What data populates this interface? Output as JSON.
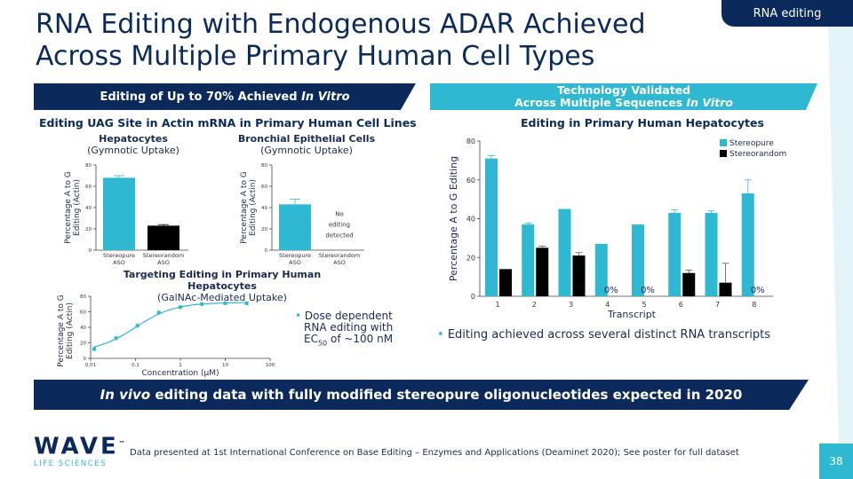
{
  "tag": "RNA editing",
  "title_line1": "RNA Editing with Endogenous ADAR Achieved",
  "title_line2": "Across Multiple Primary Human Cell Types",
  "left_banner": {
    "text": "Editing of Up to 70% Achieved ",
    "em": "In Vitro"
  },
  "right_banner": {
    "line1": "Technology Validated",
    "line2": "Across Multiple Sequences ",
    "em": "In Vitro"
  },
  "left_subhead": "Editing UAG Site in Actin mRNA in Primary Human Cell Lines",
  "right_subhead": "Editing in Primary Human Hepatocytes",
  "bottom_banner": {
    "em": "In vivo",
    "text": " editing data with fully modified stereopure oligonucleotides expected in 2020"
  },
  "footnote": "Data presented at 1st International Conference on Base Editing – Enzymes and Applications (Deaminet 2020); See poster for full dataset",
  "page_number": "38",
  "logo": {
    "text": "WAVE",
    "tm": "™",
    "sub": "LIFE SCIENCES"
  },
  "bullet_dose": {
    "line1": "Dose dependent",
    "line2": "RNA editing with",
    "line3_pre": "EC",
    "line3_sub": "50",
    "line3_post": " of ~100 nM"
  },
  "bullet_right": "Editing achieved across several distinct RNA transcripts",
  "colors": {
    "navy": "#0b2a5b",
    "teal": "#2fb8d2",
    "black": "#000000"
  },
  "chart_data": [
    {
      "type": "bar",
      "title": "Hepatocytes",
      "subtitle": "(Gymnotic Uptake)",
      "ylabel": "Percentage A to G Editing (Actin)",
      "ylim": [
        0,
        80
      ],
      "yticks": [
        0,
        20,
        40,
        60,
        80
      ],
      "categories": [
        "Stereopure ASO",
        "Stereorandom ASO"
      ],
      "values": [
        68,
        23
      ],
      "errors": [
        2,
        1
      ],
      "colors": [
        "#2fb8d2",
        "#000000"
      ]
    },
    {
      "type": "bar",
      "title": "Bronchial Epithelial Cells",
      "subtitle": "(Gymnotic Uptake)",
      "ylabel": "Percentage A to G Editing (Actin)",
      "ylim": [
        0,
        80
      ],
      "yticks": [
        0,
        20,
        40,
        60,
        80
      ],
      "categories": [
        "Stereopure ASO",
        "Stereorandom ASO"
      ],
      "values": [
        43,
        null
      ],
      "errors": [
        5,
        null
      ],
      "annotation": "No editing detected",
      "colors": [
        "#2fb8d2",
        "#000000"
      ]
    },
    {
      "type": "scatter",
      "title": "Targeting Editing in Primary Human Hepatocytes",
      "subtitle": "(GalNAc-Mediated Uptake)",
      "xlabel": "Concentration (μM)",
      "ylabel": "Percentage A to G Editing (Actin)",
      "xscale": "log",
      "xlim": [
        0.01,
        100
      ],
      "xticks": [
        "0.01",
        "0.1",
        "1",
        "10",
        "100"
      ],
      "ylim": [
        0,
        80
      ],
      "yticks": [
        0,
        20,
        40,
        60,
        80
      ],
      "x": [
        0.012,
        0.037,
        0.11,
        0.33,
        1,
        3,
        10,
        30
      ],
      "y": [
        12,
        26,
        42,
        59,
        66,
        70,
        71,
        71
      ]
    },
    {
      "type": "bar",
      "title": "",
      "xlabel": "Transcript",
      "ylabel": "Percentage A to G Editing",
      "ylim": [
        0,
        80
      ],
      "yticks": [
        0,
        20,
        40,
        60,
        80
      ],
      "categories": [
        "1",
        "2",
        "3",
        "4",
        "5",
        "6",
        "7",
        "8"
      ],
      "legend": "top-right",
      "series": [
        {
          "name": "Stereopure",
          "color": "#2fb8d2",
          "values": [
            71,
            37,
            45,
            27,
            37,
            43,
            43,
            53
          ],
          "errors": [
            1.5,
            0.8,
            0,
            0,
            0,
            1.5,
            1,
            7
          ]
        },
        {
          "name": "Stereorandom",
          "color": "#000000",
          "values": [
            14,
            25,
            21,
            0,
            0,
            12,
            7,
            0
          ],
          "errors": [
            0,
            0.8,
            1.5,
            0,
            0,
            1.5,
            10,
            0
          ]
        }
      ],
      "zero_labels": [
        "",
        "",
        "",
        "0%",
        "0%",
        "",
        "",
        "0%"
      ]
    }
  ]
}
